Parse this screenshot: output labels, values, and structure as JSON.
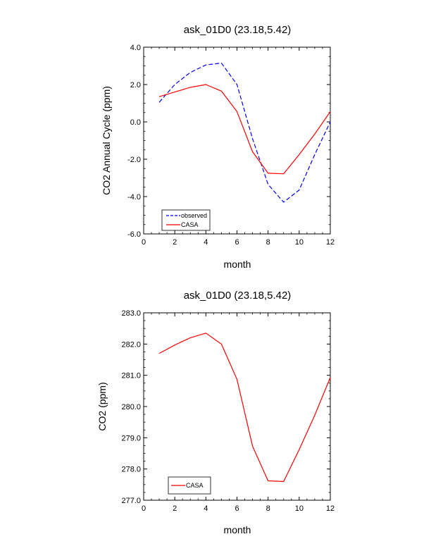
{
  "chart_data": [
    {
      "type": "line",
      "title": "ask_01D0 (23.18,5.42)",
      "xlabel": "month",
      "ylabel": "CO2 Annual Cycle (ppm)",
      "xlim": [
        0,
        12
      ],
      "ylim": [
        -6,
        4
      ],
      "xticks": [
        0,
        2,
        4,
        6,
        8,
        10,
        12
      ],
      "xtick_labels": [
        "0",
        "2",
        "4",
        "6",
        "8",
        "10",
        "12"
      ],
      "yticks": [
        -6,
        -4,
        -2,
        0,
        2,
        4
      ],
      "ytick_labels": [
        "-6.0",
        "-4.0",
        "-2.0",
        "0.0",
        "2.0",
        "4.0"
      ],
      "grid": false,
      "legend_position": "bottom-left",
      "x": [
        1,
        2,
        3,
        4,
        5,
        6,
        7,
        8,
        9,
        10,
        11,
        12
      ],
      "series": [
        {
          "name": "observed",
          "color": "#0000ff",
          "dash": true,
          "values": [
            1.05,
            2.0,
            2.65,
            3.05,
            3.15,
            2.0,
            -0.9,
            -3.35,
            -4.3,
            -3.65,
            -1.75,
            0.0
          ]
        },
        {
          "name": "CASA",
          "color": "#ff0000",
          "dash": false,
          "values": [
            1.35,
            1.6,
            1.85,
            2.0,
            1.65,
            0.55,
            -1.6,
            -2.75,
            -2.78,
            -1.75,
            -0.65,
            0.55
          ]
        }
      ]
    },
    {
      "type": "line",
      "title": "ask_01D0 (23.18,5.42)",
      "xlabel": "month",
      "ylabel": "CO2 (ppm)",
      "xlim": [
        0,
        12
      ],
      "ylim": [
        277,
        283
      ],
      "xticks": [
        0,
        2,
        4,
        6,
        8,
        10,
        12
      ],
      "xtick_labels": [
        "0",
        "2",
        "4",
        "6",
        "8",
        "10",
        "12"
      ],
      "yticks": [
        277,
        278,
        279,
        280,
        281,
        282,
        283
      ],
      "ytick_labels": [
        "277.0",
        "278.0",
        "279.0",
        "280.0",
        "281.0",
        "282.0",
        "283.0"
      ],
      "grid": false,
      "legend_position": "bottom-left",
      "x": [
        1,
        2,
        3,
        4,
        5,
        6,
        7,
        8,
        9,
        10,
        11,
        12
      ],
      "series": [
        {
          "name": "CASA",
          "color": "#ff0000",
          "dash": false,
          "values": [
            281.7,
            281.97,
            282.2,
            282.35,
            282.0,
            280.87,
            278.73,
            277.62,
            277.6,
            278.62,
            279.72,
            280.93
          ]
        }
      ]
    }
  ]
}
